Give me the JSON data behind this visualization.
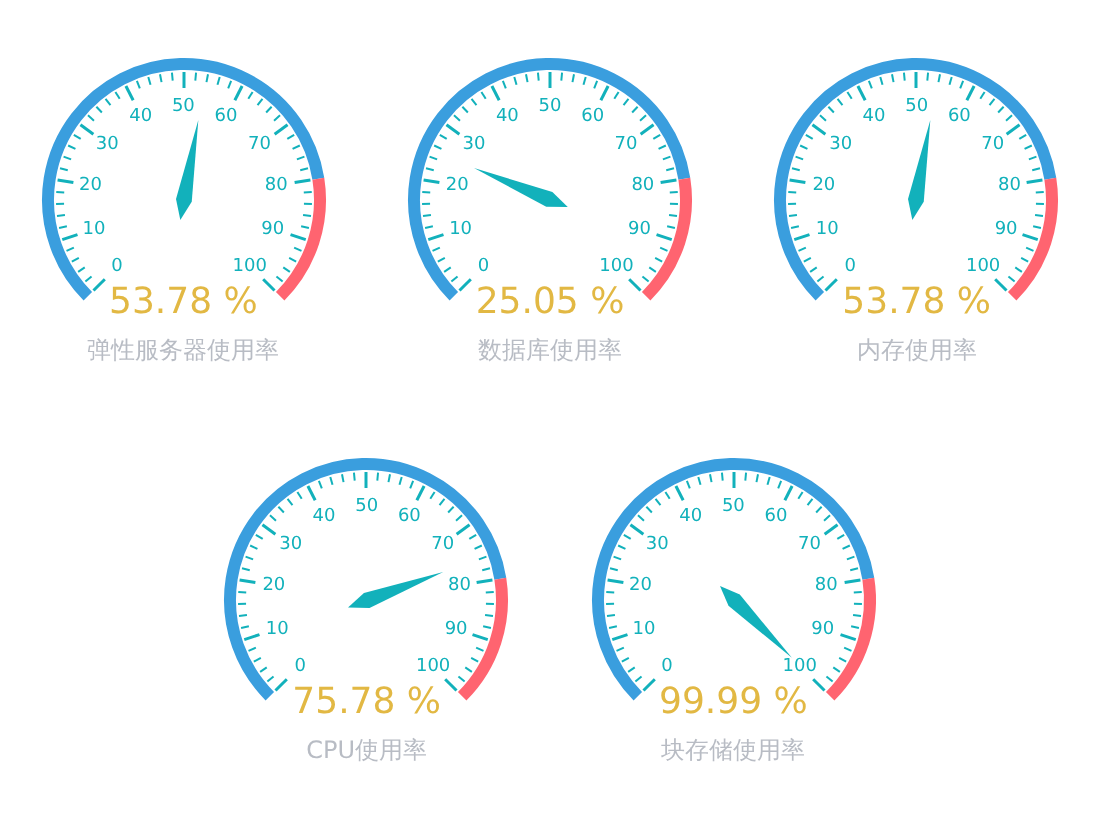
{
  "chart_data": {
    "type": "other",
    "categories": [
      "弹性服务器使用率",
      "数据库使用率",
      "内存使用率",
      "CPU使用率",
      "块存储使用率"
    ],
    "values": [
      53.78,
      25.05,
      53.78,
      75.78,
      99.99
    ],
    "value_labels": [
      "53.78 %",
      "25.05 %",
      "53.78 %",
      "75.78 %",
      "99.99 %"
    ],
    "annotations": [
      "0",
      "10",
      "20",
      "30",
      "40",
      "50",
      "60",
      "70",
      "80",
      "90",
      "100"
    ],
    "color": "#12b1bb"
  }
}
